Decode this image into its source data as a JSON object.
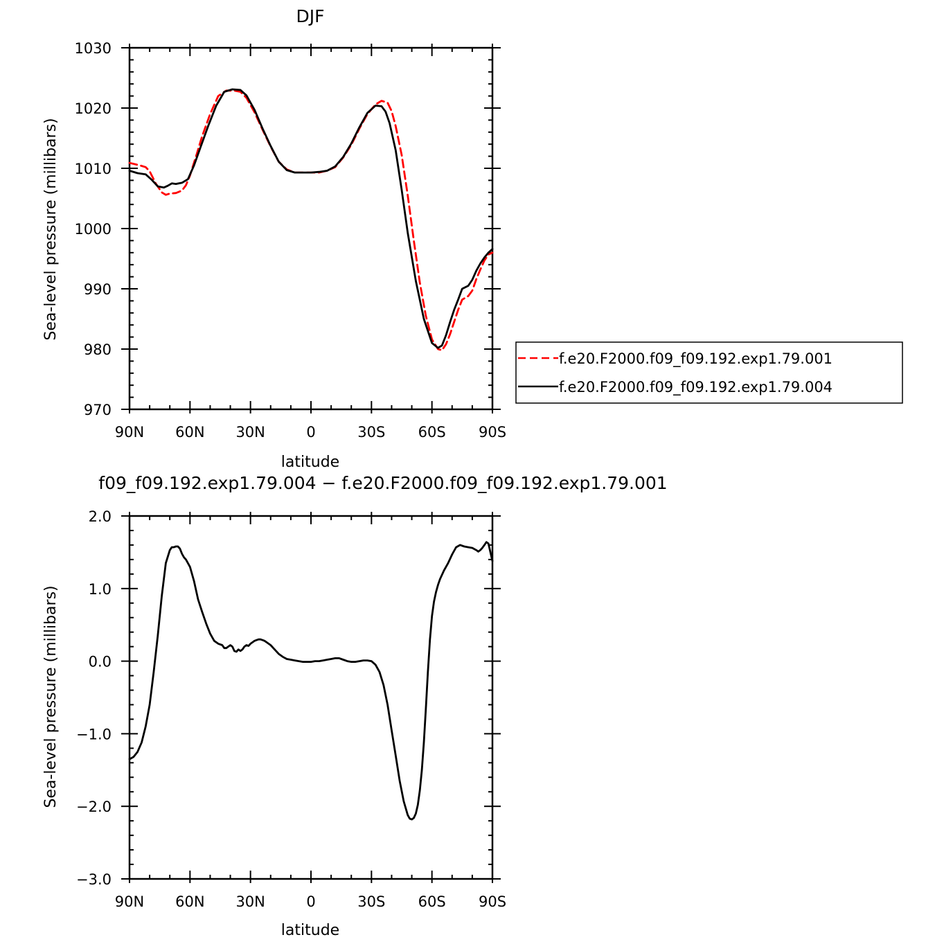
{
  "chart_data": [
    {
      "type": "line",
      "title": "DJF",
      "xlabel": "latitude",
      "ylabel": "Sea-level pressure (millibars)",
      "xlim": [
        90,
        -90
      ],
      "ylim": [
        970,
        1030
      ],
      "x_ticks": [
        {
          "value": 90,
          "label": "90N"
        },
        {
          "value": 60,
          "label": "60N"
        },
        {
          "value": 30,
          "label": "30N"
        },
        {
          "value": 0,
          "label": "0"
        },
        {
          "value": -30,
          "label": "30S"
        },
        {
          "value": -60,
          "label": "60S"
        },
        {
          "value": -90,
          "label": "90S"
        }
      ],
      "y_ticks": [
        {
          "value": 1030,
          "label": "1030"
        },
        {
          "value": 1020,
          "label": "1020"
        },
        {
          "value": 1010,
          "label": "1010"
        },
        {
          "value": 1000,
          "label": "1000"
        },
        {
          "value": 990,
          "label": "990"
        },
        {
          "value": 980,
          "label": "980"
        },
        {
          "value": 970,
          "label": "970"
        }
      ],
      "legend_position": "right",
      "series": [
        {
          "name": "f.e20.F2000.f09_f09.192.exp1.79.001",
          "color": "#ff0000",
          "dash": "dashed",
          "x": [
            90,
            85,
            82,
            80,
            77,
            74,
            72,
            70,
            67,
            64,
            62,
            60,
            57,
            54,
            50,
            46,
            42,
            38,
            35,
            32,
            28,
            24,
            20,
            16,
            12,
            8,
            4,
            0,
            -4,
            -8,
            -12,
            -16,
            -20,
            -24,
            -28,
            -32,
            -35,
            -38,
            -40,
            -42,
            -45,
            -48,
            -51,
            -54,
            -57,
            -60,
            -63,
            -65,
            -67,
            -69,
            -71,
            -73,
            -75,
            -78,
            -80,
            -82,
            -84,
            -86,
            -88,
            -90
          ],
          "y": [
            1010.9,
            1010.5,
            1010.2,
            1009.5,
            1007.5,
            1006.0,
            1005.6,
            1005.8,
            1005.9,
            1006.3,
            1007.2,
            1008.8,
            1012.0,
            1015.3,
            1019.0,
            1022.0,
            1022.9,
            1022.9,
            1022.7,
            1021.7,
            1019.3,
            1016.4,
            1013.6,
            1011.1,
            1009.8,
            1009.3,
            1009.3,
            1009.3,
            1009.3,
            1009.6,
            1010.2,
            1011.8,
            1013.9,
            1016.6,
            1019.0,
            1020.6,
            1021.2,
            1020.9,
            1019.5,
            1017.0,
            1012.2,
            1005.5,
            998.0,
            991.0,
            985.5,
            981.6,
            980.0,
            979.8,
            980.8,
            982.5,
            984.5,
            986.5,
            988.2,
            988.8,
            989.7,
            991.6,
            993.2,
            994.7,
            995.7,
            996.0
          ]
        },
        {
          "name": "f.e20.F2000.f09_f09.192.exp1.79.004",
          "color": "#000000",
          "dash": "solid",
          "x": [
            90,
            86,
            82,
            79,
            76,
            73,
            71,
            69,
            67,
            64,
            61,
            58,
            55,
            51,
            47,
            43,
            39,
            35,
            32,
            28,
            24,
            20,
            16,
            12,
            8,
            4,
            0,
            -4,
            -8,
            -12,
            -16,
            -20,
            -24,
            -28,
            -32,
            -35,
            -37,
            -39,
            -42,
            -45,
            -48,
            -52,
            -56,
            -60,
            -63,
            -65,
            -67,
            -69,
            -71,
            -73,
            -75,
            -78,
            -80,
            -82,
            -84,
            -86,
            -88,
            -90
          ],
          "y": [
            1009.6,
            1009.2,
            1009.0,
            1008.1,
            1007.0,
            1006.8,
            1007.1,
            1007.5,
            1007.4,
            1007.6,
            1008.2,
            1010.5,
            1013.3,
            1017.0,
            1020.4,
            1022.7,
            1023.1,
            1023.0,
            1022.1,
            1019.7,
            1016.6,
            1013.7,
            1011.1,
            1009.7,
            1009.3,
            1009.3,
            1009.3,
            1009.4,
            1009.6,
            1010.3,
            1011.9,
            1014.1,
            1016.8,
            1019.2,
            1020.4,
            1020.3,
            1019.4,
            1017.5,
            1013.0,
            1006.4,
            999.3,
            991.3,
            985.0,
            981.0,
            980.2,
            980.6,
            982.3,
            984.5,
            986.5,
            988.2,
            990.0,
            990.5,
            991.5,
            993.0,
            994.2,
            995.2,
            996.0,
            996.6
          ]
        }
      ]
    },
    {
      "type": "line",
      "title": "f09_f09.192.exp1.79.004 − f.e20.F2000.f09_f09.192.exp1.79.001",
      "xlabel": "latitude",
      "ylabel": "Sea-level pressure (millibars)",
      "xlim": [
        90,
        -90
      ],
      "ylim": [
        -3.0,
        2.0
      ],
      "x_ticks": [
        {
          "value": 90,
          "label": "90N"
        },
        {
          "value": 60,
          "label": "60N"
        },
        {
          "value": 30,
          "label": "30N"
        },
        {
          "value": 0,
          "label": "0"
        },
        {
          "value": -30,
          "label": "30S"
        },
        {
          "value": -60,
          "label": "60S"
        },
        {
          "value": -90,
          "label": "90S"
        }
      ],
      "y_ticks": [
        {
          "value": 2.0,
          "label": "2.0"
        },
        {
          "value": 1.0,
          "label": "1.0"
        },
        {
          "value": 0.0,
          "label": "0.0"
        },
        {
          "value": -1.0,
          "label": "−1.0"
        },
        {
          "value": -2.0,
          "label": "−2.0"
        },
        {
          "value": -3.0,
          "label": "−3.0"
        }
      ],
      "series": [
        {
          "color": "#000000",
          "dash": "solid",
          "x": [
            90,
            88,
            86,
            84,
            82,
            80,
            78,
            76,
            74,
            72,
            70,
            69,
            68,
            67,
            66,
            65,
            64,
            63,
            62,
            60,
            58,
            56,
            54,
            52,
            50,
            48,
            46,
            44,
            43,
            42,
            41,
            40,
            39,
            38,
            37,
            36,
            35,
            34,
            33,
            32,
            31,
            30,
            29,
            28,
            27,
            26,
            25,
            24,
            23,
            22,
            20,
            18,
            16,
            14,
            12,
            10,
            8,
            6,
            4,
            2,
            0,
            -2,
            -4,
            -6,
            -8,
            -10,
            -12,
            -14,
            -16,
            -18,
            -20,
            -22,
            -24,
            -26,
            -28,
            -30,
            -32,
            -34,
            -36,
            -38,
            -40,
            -42,
            -44,
            -46,
            -48,
            -49,
            -50,
            -51,
            -52,
            -53,
            -54,
            -55,
            -56,
            -57,
            -58,
            -59,
            -60,
            -61,
            -62,
            -63,
            -64,
            -66,
            -68,
            -70,
            -72,
            -74,
            -76,
            -78,
            -80,
            -82,
            -83,
            -84,
            -85,
            -86,
            -87,
            -88,
            -89,
            -90
          ],
          "y": [
            -1.35,
            -1.32,
            -1.25,
            -1.12,
            -0.9,
            -0.6,
            -0.15,
            0.35,
            0.9,
            1.35,
            1.53,
            1.57,
            1.57,
            1.58,
            1.58,
            1.55,
            1.48,
            1.43,
            1.4,
            1.3,
            1.1,
            0.85,
            0.68,
            0.52,
            0.38,
            0.28,
            0.24,
            0.22,
            0.18,
            0.18,
            0.2,
            0.22,
            0.2,
            0.14,
            0.13,
            0.16,
            0.14,
            0.16,
            0.2,
            0.22,
            0.21,
            0.24,
            0.26,
            0.28,
            0.29,
            0.3,
            0.3,
            0.29,
            0.28,
            0.26,
            0.22,
            0.16,
            0.1,
            0.06,
            0.03,
            0.02,
            0.01,
            0.0,
            -0.01,
            -0.01,
            -0.01,
            0.0,
            0.0,
            0.01,
            0.02,
            0.03,
            0.04,
            0.04,
            0.02,
            0.0,
            -0.01,
            -0.01,
            0.0,
            0.01,
            0.01,
            0.0,
            -0.05,
            -0.15,
            -0.33,
            -0.6,
            -0.95,
            -1.3,
            -1.65,
            -1.93,
            -2.12,
            -2.17,
            -2.18,
            -2.16,
            -2.1,
            -1.98,
            -1.78,
            -1.5,
            -1.12,
            -0.65,
            -0.15,
            0.3,
            0.62,
            0.82,
            0.95,
            1.05,
            1.13,
            1.25,
            1.35,
            1.47,
            1.57,
            1.6,
            1.58,
            1.57,
            1.56,
            1.53,
            1.51,
            1.53,
            1.56,
            1.6,
            1.64,
            1.62,
            1.5,
            1.38
          ]
        }
      ]
    }
  ]
}
